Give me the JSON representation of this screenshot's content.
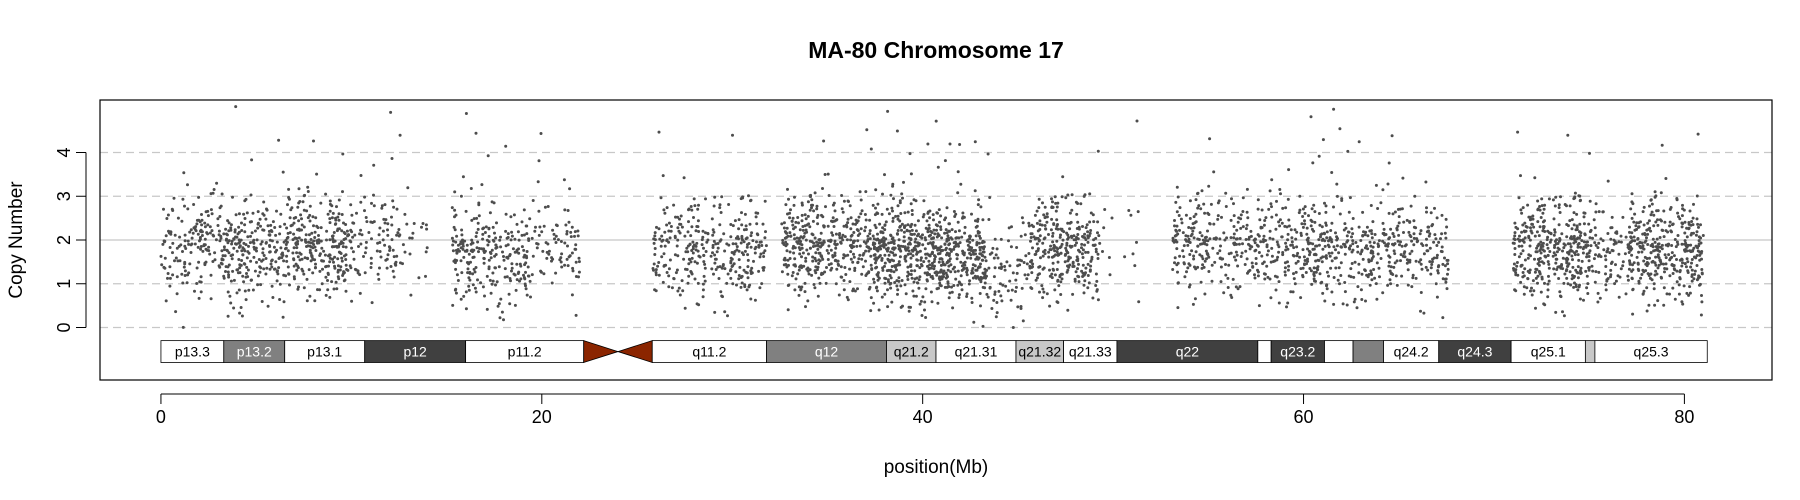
{
  "chart_data": {
    "type": "scatter",
    "title": "MA-80  Chromosome 17",
    "xlabel": "position(Mb)",
    "ylabel": "Copy Number",
    "xlim": [
      -3.2,
      84.6
    ],
    "ylim": [
      -1.2,
      5.2
    ],
    "x_ticks": [
      0,
      20,
      40,
      60,
      80
    ],
    "y_ticks": [
      0,
      1,
      2,
      3,
      4
    ],
    "grid": "dashed horizontal lines at 0, 1, 3, 4; solid line at 2",
    "point_color": "#4d4d4d",
    "grid_color": "#c8c8c8",
    "centromere_color": "#8b2500",
    "ideogram_y_range": [
      -0.8,
      -0.3
    ],
    "centromere": [
      22.2,
      25.8
    ],
    "bands": [
      {
        "name": "p13.3",
        "start": 0.0,
        "end": 3.3,
        "stain": "gneg"
      },
      {
        "name": "p13.2",
        "start": 3.3,
        "end": 6.5,
        "stain": "gpos50"
      },
      {
        "name": "p13.1",
        "start": 6.5,
        "end": 10.7,
        "stain": "gneg"
      },
      {
        "name": "p12",
        "start": 10.7,
        "end": 16.0,
        "stain": "gpos75"
      },
      {
        "name": "p11.2",
        "start": 16.0,
        "end": 22.2,
        "stain": "gneg"
      },
      {
        "name": "",
        "start": 22.2,
        "end": 24.0,
        "stain": "acen"
      },
      {
        "name": "",
        "start": 24.0,
        "end": 25.8,
        "stain": "acen"
      },
      {
        "name": "q11.2",
        "start": 25.8,
        "end": 31.8,
        "stain": "gneg"
      },
      {
        "name": "q12",
        "start": 31.8,
        "end": 38.1,
        "stain": "gpos50"
      },
      {
        "name": "q21.2",
        "start": 38.1,
        "end": 40.7,
        "stain": "gpos25"
      },
      {
        "name": "q21.31",
        "start": 40.7,
        "end": 44.9,
        "stain": "gneg"
      },
      {
        "name": "q21.32",
        "start": 44.9,
        "end": 47.4,
        "stain": "gpos25"
      },
      {
        "name": "q21.33",
        "start": 47.4,
        "end": 50.2,
        "stain": "gneg"
      },
      {
        "name": "q22",
        "start": 50.2,
        "end": 57.6,
        "stain": "gpos75"
      },
      {
        "name": "",
        "start": 57.6,
        "end": 58.3,
        "stain": "gneg"
      },
      {
        "name": "q23.2",
        "start": 58.3,
        "end": 61.1,
        "stain": "gpos75"
      },
      {
        "name": "",
        "start": 61.1,
        "end": 62.6,
        "stain": "gneg"
      },
      {
        "name": "",
        "start": 62.6,
        "end": 64.2,
        "stain": "gpos50"
      },
      {
        "name": "q24.2",
        "start": 64.2,
        "end": 67.1,
        "stain": "gneg"
      },
      {
        "name": "q24.3",
        "start": 67.1,
        "end": 70.9,
        "stain": "gpos75"
      },
      {
        "name": "q25.1",
        "start": 70.9,
        "end": 74.8,
        "stain": "gneg"
      },
      {
        "name": "",
        "start": 74.8,
        "end": 75.3,
        "stain": "gpos25"
      },
      {
        "name": "q25.3",
        "start": 75.3,
        "end": 81.2,
        "stain": "gneg"
      }
    ],
    "clusters": [
      {
        "x": [
          0.0,
          1.2
        ],
        "center": 1.8,
        "n": 50
      },
      {
        "x": [
          1.2,
          3.3
        ],
        "center": 1.9,
        "n": 120
      },
      {
        "x": [
          3.3,
          6.5
        ],
        "center": 1.75,
        "n": 230
      },
      {
        "x": [
          6.5,
          9.8
        ],
        "center": 1.9,
        "n": 270
      },
      {
        "x": [
          9.8,
          12.6
        ],
        "center": 1.95,
        "n": 110
      },
      {
        "x": [
          12.6,
          14.0
        ],
        "center": 2.0,
        "n": 20
      },
      {
        "x": [
          15.3,
          19.3
        ],
        "center": 1.7,
        "n": 250
      },
      {
        "x": [
          19.3,
          22.0
        ],
        "center": 1.9,
        "n": 90
      },
      {
        "x": [
          25.8,
          31.8
        ],
        "center": 1.8,
        "n": 330
      },
      {
        "x": [
          32.6,
          37.4
        ],
        "center": 1.9,
        "n": 380
      },
      {
        "x": [
          37.4,
          41.5
        ],
        "center": 1.75,
        "n": 500
      },
      {
        "x": [
          41.5,
          43.3
        ],
        "center": 1.65,
        "n": 180
      },
      {
        "x": [
          43.3,
          45.6
        ],
        "center": 1.3,
        "n": 80
      },
      {
        "x": [
          45.6,
          49.3
        ],
        "center": 1.85,
        "n": 300
      },
      {
        "x": [
          49.3,
          51.4
        ],
        "center": 2.1,
        "n": 15
      },
      {
        "x": [
          53.1,
          57.4
        ],
        "center": 1.95,
        "n": 230
      },
      {
        "x": [
          57.4,
          61.1
        ],
        "center": 1.85,
        "n": 230
      },
      {
        "x": [
          61.1,
          63.7
        ],
        "center": 1.8,
        "n": 160
      },
      {
        "x": [
          63.7,
          67.6
        ],
        "center": 1.85,
        "n": 200
      },
      {
        "x": [
          71.0,
          75.1
        ],
        "center": 1.8,
        "n": 370
      },
      {
        "x": [
          75.1,
          77.0
        ],
        "center": 1.75,
        "n": 80
      },
      {
        "x": [
          77.0,
          81.0
        ],
        "center": 1.8,
        "n": 360
      }
    ]
  }
}
